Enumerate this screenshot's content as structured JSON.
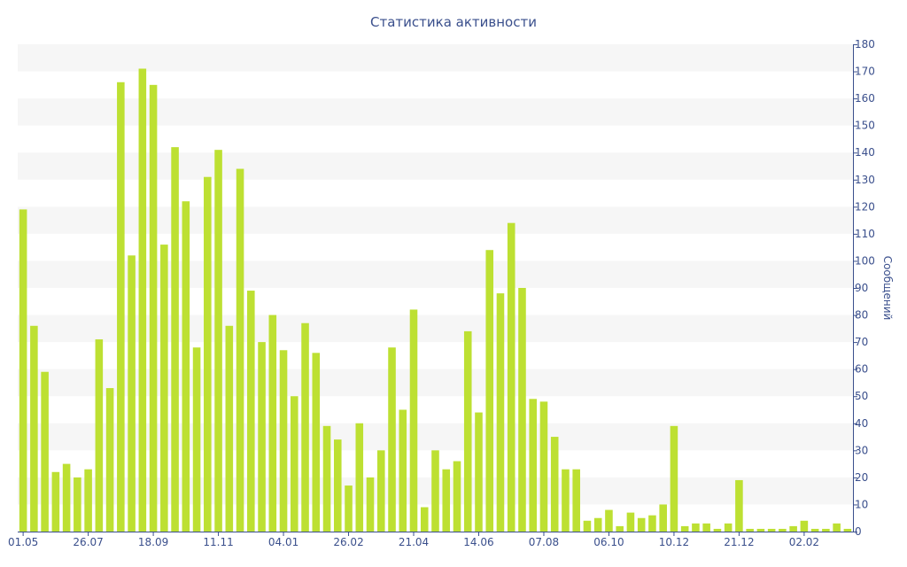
{
  "chart_data": {
    "type": "bar",
    "title": "Статистика активности",
    "xlabel": "",
    "ylabel": "Сообщений",
    "ylim": [
      0,
      180
    ],
    "y_ticks": [
      0,
      10,
      20,
      30,
      40,
      50,
      60,
      70,
      80,
      90,
      100,
      110,
      120,
      130,
      140,
      150,
      160,
      170,
      180
    ],
    "y_axis_side": "right",
    "grid": "alternating horizontal bands",
    "legend": "none",
    "x_tick_labels": [
      {
        "label": "01.05",
        "index": 0
      },
      {
        "label": "26.07",
        "index": 6
      },
      {
        "label": "18.09",
        "index": 12
      },
      {
        "label": "11.11",
        "index": 18
      },
      {
        "label": "04.01",
        "index": 24
      },
      {
        "label": "26.02",
        "index": 30
      },
      {
        "label": "21.04",
        "index": 36
      },
      {
        "label": "14.06",
        "index": 42
      },
      {
        "label": "07.08",
        "index": 48
      },
      {
        "label": "06.10",
        "index": 54
      },
      {
        "label": "10.12",
        "index": 60
      },
      {
        "label": "21.12",
        "index": 66
      },
      {
        "label": "02.02",
        "index": 72
      }
    ],
    "values": [
      119,
      76,
      59,
      22,
      25,
      20,
      23,
      71,
      53,
      166,
      102,
      171,
      165,
      106,
      142,
      122,
      68,
      131,
      141,
      76,
      134,
      89,
      70,
      80,
      67,
      50,
      77,
      66,
      39,
      34,
      17,
      40,
      20,
      30,
      68,
      45,
      82,
      9,
      30,
      23,
      26,
      74,
      44,
      104,
      88,
      114,
      90,
      49,
      48,
      35,
      23,
      23,
      4,
      5,
      8,
      2,
      7,
      5,
      6,
      10,
      39,
      2,
      3,
      3,
      1,
      3,
      19,
      1,
      1,
      1,
      1,
      2,
      4,
      1,
      1,
      3,
      1
    ]
  },
  "colors": {
    "bar": "#bde032",
    "band": "#f6f6f6",
    "axis": "#3a4f8c",
    "text": "#3a4f8c"
  }
}
